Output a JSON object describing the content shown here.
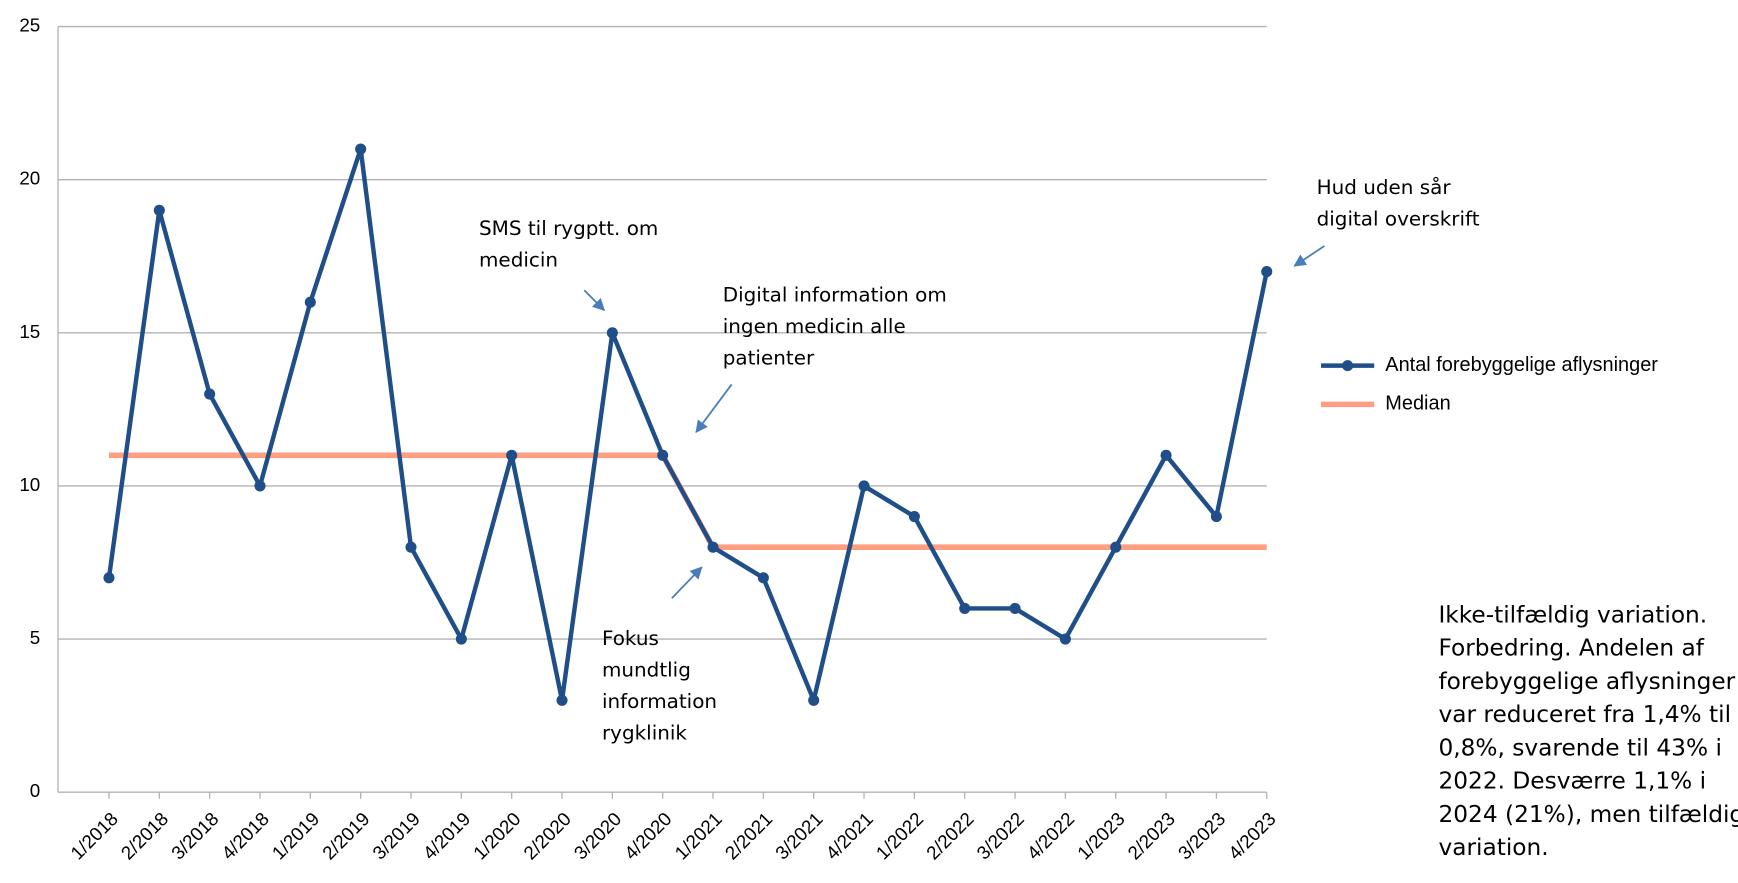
{
  "chart_data": {
    "type": "line",
    "categories": [
      "1/2018",
      "2/2018",
      "3/2018",
      "4/2018",
      "1/2019",
      "2/2019",
      "3/2019",
      "4/2019",
      "1/2020",
      "2/2020",
      "3/2020",
      "4/2020",
      "1/2021",
      "2/2021",
      "3/2021",
      "4/2021",
      "1/2022",
      "2/2022",
      "3/2022",
      "4/2022",
      "1/2023",
      "2/2023",
      "3/2023",
      "4/2023"
    ],
    "series": [
      {
        "name": "Antal forebyggelige aflysninger",
        "color": "#1f4e89",
        "values": [
          7,
          19,
          13,
          10,
          16,
          21,
          8,
          5,
          11,
          3,
          15,
          11,
          8,
          7,
          3,
          10,
          9,
          6,
          6,
          5,
          8,
          11,
          9,
          17
        ]
      },
      {
        "name": "Median",
        "color": "#ff9e80",
        "values": [
          11,
          11,
          11,
          11,
          11,
          11,
          11,
          11,
          11,
          11,
          11,
          11,
          8,
          8,
          8,
          8,
          8,
          8,
          8,
          8,
          8,
          8,
          8,
          8
        ]
      }
    ],
    "ylim": [
      0,
      25
    ],
    "yticks": [
      0,
      5,
      10,
      15,
      20,
      25
    ],
    "grid": true,
    "legend": "right",
    "annotations": [
      {
        "lines": [
          "SMS til rygptt. om",
          "medicin"
        ]
      },
      {
        "lines": [
          "Digital information om",
          "ingen medicin alle",
          "patienter"
        ]
      },
      {
        "lines": [
          "Fokus",
          "mundtlig",
          "information",
          "rygklinik"
        ]
      },
      {
        "lines": [
          "Hud uden sår",
          "digital overskrift"
        ]
      }
    ],
    "note": [
      "Ikke-tilfældig variation.",
      "Forbedring. Andelen af",
      "forebyggelige aflysninger",
      "var reduceret fra 1,4% til",
      "0,8%, svarende til 43% i",
      "2022. Desværre 1,1% i",
      "2024 (21%), men tilfældig",
      "variation."
    ]
  }
}
